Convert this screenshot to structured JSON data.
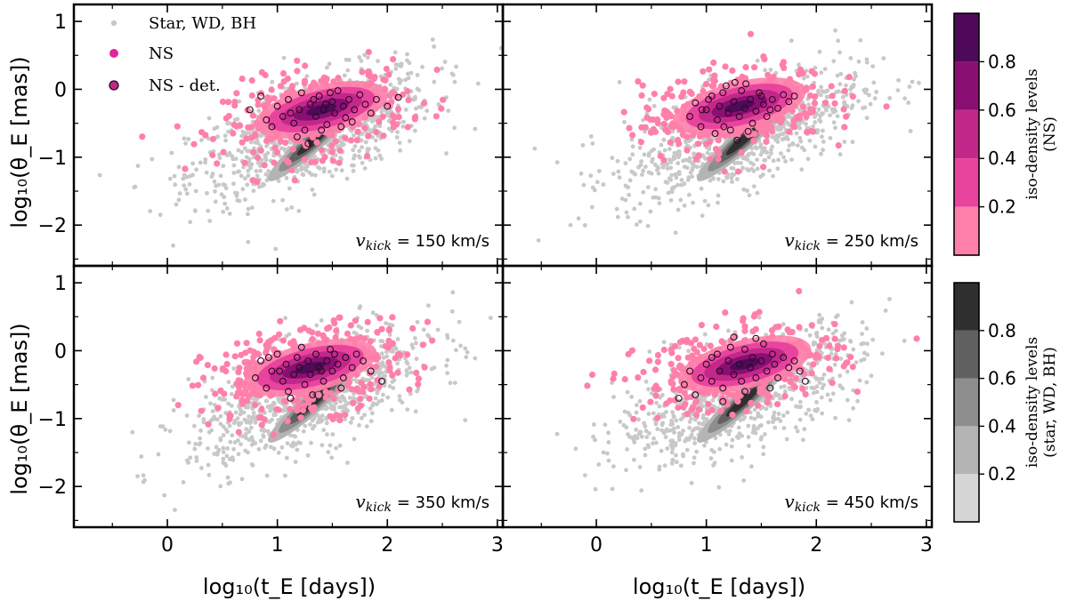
{
  "chart_data": {
    "type": "scatter",
    "xlabel": "log₁₀(t_E [days])",
    "ylabel": "log₁₀(θ_E [mas])",
    "xlim": [
      -0.85,
      3.05
    ],
    "ylim": [
      -2.6,
      1.25
    ],
    "xticks": [
      0,
      1,
      2,
      3
    ],
    "yticks": [
      -2,
      -1,
      0,
      1
    ],
    "legend": {
      "position": "top-left",
      "entries": [
        {
          "label": "Star, WD, BH",
          "color": "#c8c8c8",
          "marker": "small-dot"
        },
        {
          "label": "NS",
          "color": "#e0269a",
          "marker": "dot"
        },
        {
          "label": "NS - det.",
          "color": "#c2288a",
          "marker": "outlined-dot"
        }
      ]
    },
    "panels": [
      {
        "annotation": "150 km/s",
        "vkick": 150,
        "ns_center": [
          1.35,
          -0.35
        ],
        "ns_spread": [
          0.42,
          0.3
        ],
        "det_points": [
          [
            0.75,
            -0.3
          ],
          [
            0.85,
            -0.1
          ],
          [
            0.95,
            -0.55
          ],
          [
            1.0,
            -0.25
          ],
          [
            1.05,
            -0.4
          ],
          [
            1.1,
            -0.15
          ],
          [
            1.15,
            -0.5
          ],
          [
            1.2,
            -0.3
          ],
          [
            1.22,
            -0.05
          ],
          [
            1.25,
            -0.6
          ],
          [
            1.3,
            -0.22
          ],
          [
            1.35,
            -0.4
          ],
          [
            1.38,
            -0.1
          ],
          [
            1.42,
            -0.3
          ],
          [
            1.45,
            -0.52
          ],
          [
            1.5,
            -0.18
          ],
          [
            1.52,
            -0.35
          ],
          [
            1.55,
            -0.02
          ],
          [
            1.6,
            -0.25
          ],
          [
            1.62,
            -0.42
          ],
          [
            1.65,
            -0.15
          ],
          [
            1.7,
            -0.3
          ],
          [
            1.75,
            -0.08
          ],
          [
            1.8,
            -0.22
          ],
          [
            1.85,
            -0.35
          ],
          [
            1.9,
            -0.15
          ],
          [
            2.0,
            -0.25
          ],
          [
            2.1,
            -0.12
          ],
          [
            1.28,
            -0.8
          ],
          [
            1.18,
            -0.7
          ],
          [
            1.4,
            -0.6
          ],
          [
            1.48,
            -0.05
          ],
          [
            1.58,
            -0.55
          ],
          [
            1.12,
            -0.35
          ],
          [
            0.9,
            -0.45
          ],
          [
            1.68,
            -0.48
          ],
          [
            1.33,
            -0.15
          ],
          [
            1.44,
            -0.22
          ]
        ]
      },
      {
        "annotation": "250 km/s",
        "vkick": 250,
        "ns_center": [
          1.25,
          -0.3
        ],
        "ns_spread": [
          0.42,
          0.3
        ],
        "det_points": [
          [
            0.85,
            -0.4
          ],
          [
            0.9,
            -0.2
          ],
          [
            0.95,
            -0.55
          ],
          [
            1.0,
            -0.3
          ],
          [
            1.05,
            -0.1
          ],
          [
            1.1,
            -0.45
          ],
          [
            1.12,
            -0.25
          ],
          [
            1.15,
            -0.05
          ],
          [
            1.2,
            -0.35
          ],
          [
            1.22,
            -0.6
          ],
          [
            1.25,
            -0.18
          ],
          [
            1.3,
            -0.4
          ],
          [
            1.32,
            -0.02
          ],
          [
            1.35,
            -0.28
          ],
          [
            1.4,
            -0.15
          ],
          [
            1.42,
            -0.5
          ],
          [
            1.45,
            -0.32
          ],
          [
            1.5,
            -0.1
          ],
          [
            1.52,
            -0.22
          ],
          [
            1.55,
            -0.4
          ],
          [
            1.6,
            -0.15
          ],
          [
            1.65,
            -0.28
          ],
          [
            1.7,
            -0.08
          ],
          [
            1.75,
            -0.18
          ],
          [
            1.8,
            -0.1
          ],
          [
            1.18,
            0.05
          ],
          [
            1.08,
            -0.65
          ],
          [
            1.28,
            -0.75
          ],
          [
            1.38,
            -0.62
          ],
          [
            1.48,
            -0.05
          ],
          [
            1.58,
            -0.3
          ],
          [
            1.02,
            -0.15
          ],
          [
            1.26,
            0.1
          ],
          [
            1.36,
            0.08
          ],
          [
            1.16,
            -0.55
          ],
          [
            0.96,
            -0.3
          ]
        ]
      },
      {
        "annotation": "350 km/s",
        "vkick": 350,
        "ns_center": [
          1.25,
          -0.3
        ],
        "ns_spread": [
          0.45,
          0.32
        ],
        "det_points": [
          [
            0.8,
            -0.4
          ],
          [
            0.85,
            -0.15
          ],
          [
            0.9,
            -0.55
          ],
          [
            0.95,
            -0.3
          ],
          [
            1.0,
            -0.05
          ],
          [
            1.05,
            -0.45
          ],
          [
            1.08,
            -0.2
          ],
          [
            1.1,
            -0.6
          ],
          [
            1.15,
            -0.35
          ],
          [
            1.18,
            -0.1
          ],
          [
            1.2,
            -0.25
          ],
          [
            1.25,
            -0.5
          ],
          [
            1.28,
            -0.15
          ],
          [
            1.3,
            -0.35
          ],
          [
            1.35,
            -0.05
          ],
          [
            1.38,
            -0.25
          ],
          [
            1.42,
            -0.45
          ],
          [
            1.45,
            -0.15
          ],
          [
            1.5,
            -0.3
          ],
          [
            1.52,
            -0.05
          ],
          [
            1.55,
            -0.2
          ],
          [
            1.6,
            -0.4
          ],
          [
            1.62,
            -0.1
          ],
          [
            1.68,
            -0.25
          ],
          [
            1.72,
            -0.05
          ],
          [
            1.78,
            -0.15
          ],
          [
            1.85,
            -0.3
          ],
          [
            1.95,
            -0.45
          ],
          [
            1.22,
            0.05
          ],
          [
            1.12,
            -0.7
          ],
          [
            1.32,
            -0.65
          ],
          [
            1.02,
            -0.3
          ],
          [
            1.48,
            0.02
          ],
          [
            1.58,
            -0.55
          ],
          [
            0.92,
            -0.1
          ],
          [
            1.4,
            -0.3
          ]
        ]
      },
      {
        "annotation": "450 km/s",
        "vkick": 450,
        "ns_center": [
          1.3,
          -0.25
        ],
        "ns_spread": [
          0.45,
          0.3
        ],
        "det_points": [
          [
            0.8,
            -0.5
          ],
          [
            0.85,
            -0.3
          ],
          [
            0.9,
            -0.65
          ],
          [
            0.95,
            -0.4
          ],
          [
            1.0,
            -0.2
          ],
          [
            1.05,
            -0.45
          ],
          [
            1.1,
            -0.05
          ],
          [
            1.12,
            -0.3
          ],
          [
            1.15,
            -0.55
          ],
          [
            1.2,
            -0.15
          ],
          [
            1.22,
            0.05
          ],
          [
            1.25,
            -0.35
          ],
          [
            1.3,
            -0.2
          ],
          [
            1.32,
            -0.45
          ],
          [
            1.35,
            0.02
          ],
          [
            1.4,
            -0.25
          ],
          [
            1.42,
            -0.1
          ],
          [
            1.45,
            -0.4
          ],
          [
            1.5,
            -0.15
          ],
          [
            1.52,
            0.1
          ],
          [
            1.55,
            -0.3
          ],
          [
            1.6,
            -0.05
          ],
          [
            1.62,
            -0.2
          ],
          [
            1.65,
            -0.4
          ],
          [
            1.7,
            -0.1
          ],
          [
            1.75,
            -0.25
          ],
          [
            1.8,
            -0.15
          ],
          [
            1.85,
            -0.3
          ],
          [
            1.9,
            -0.45
          ],
          [
            1.25,
            0.2
          ],
          [
            1.45,
            0.18
          ],
          [
            1.15,
            -0.75
          ],
          [
            0.75,
            -0.7
          ],
          [
            1.35,
            -0.6
          ],
          [
            1.05,
            -0.1
          ],
          [
            1.58,
            -0.55
          ]
        ]
      }
    ],
    "colorbars": [
      {
        "title_line1": "iso-density levels",
        "title_line2": "(NS)",
        "ticks": [
          "0.2",
          "0.4",
          "0.6",
          "0.8"
        ],
        "colors": [
          "#ff7fab",
          "#e8449e",
          "#c2288a",
          "#8a0f72",
          "#4e0a58"
        ]
      },
      {
        "title_line1": "iso-density levels",
        "title_line2": "(star, WD, BH)",
        "ticks": [
          "0.2",
          "0.4",
          "0.6",
          "0.8"
        ],
        "colors": [
          "#d6d6d6",
          "#b4b4b4",
          "#8e8e8e",
          "#616161",
          "#2f2f2f"
        ]
      }
    ]
  }
}
